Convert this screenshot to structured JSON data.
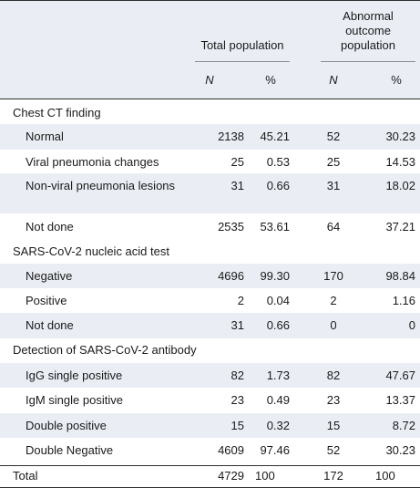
{
  "header": {
    "group1": "Total population",
    "group2": "Abnormal outcome population",
    "n_label": "N",
    "pct_label": "%"
  },
  "sections": [
    {
      "title": "Chest CT finding",
      "rows": [
        {
          "label": "Normal",
          "n1": "2138",
          "p1": "45.21",
          "n2": "52",
          "p2": "30.23"
        },
        {
          "label": "Viral pneumonia changes",
          "n1": "25",
          "p1": "0.53",
          "n2": "25",
          "p2": "14.53"
        },
        {
          "label": "Non-viral pneumonia lesions",
          "n1": "31",
          "p1": "0.66",
          "n2": "31",
          "p2": "18.02"
        },
        {
          "label": "Not done",
          "n1": "2535",
          "p1": "53.61",
          "n2": "64",
          "p2": "37.21"
        }
      ]
    },
    {
      "title": "SARS-CoV-2 nucleic acid test",
      "rows": [
        {
          "label": "Negative",
          "n1": "4696",
          "p1": "99.30",
          "n2": "170",
          "p2": "98.84"
        },
        {
          "label": "Positive",
          "n1": "2",
          "p1": "0.04",
          "n2": "2",
          "p2": "1.16"
        },
        {
          "label": "Not done",
          "n1": "31",
          "p1": "0.66",
          "n2": "0",
          "p2": "0"
        }
      ]
    },
    {
      "title": "Detection of SARS-CoV-2 antibody",
      "rows": [
        {
          "label": "IgG single positive",
          "n1": "82",
          "p1": "1.73",
          "n2": "82",
          "p2": "47.67"
        },
        {
          "label": "IgM single positive",
          "n1": "23",
          "p1": "0.49",
          "n2": "23",
          "p2": "13.37"
        },
        {
          "label": "Double positive",
          "n1": "15",
          "p1": "0.32",
          "n2": "15",
          "p2": "8.72"
        },
        {
          "label": "Double Negative",
          "n1": "4609",
          "p1": "97.46",
          "n2": "52",
          "p2": "30.23"
        }
      ]
    }
  ],
  "total": {
    "label": "Total",
    "n1": "4729",
    "p1": "100",
    "n2": "172",
    "p2": "100"
  },
  "colors": {
    "header_bg": "#eaeef4",
    "band_bg": "#eaeef4",
    "rule": "#2f2f2f",
    "subrule": "#8f8f8f",
    "text": "#1a1a1a"
  }
}
